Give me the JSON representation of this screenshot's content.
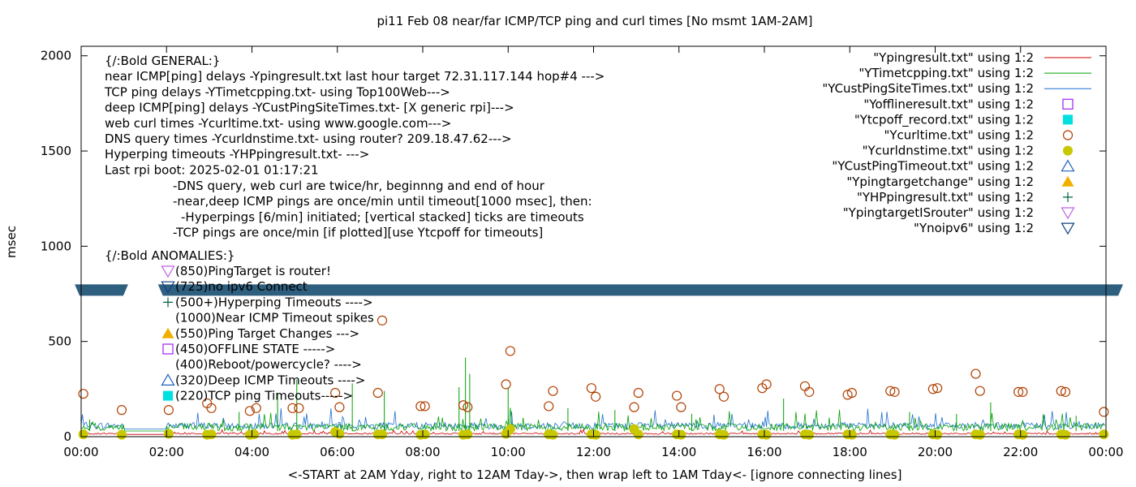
{
  "chart_data": {
    "type": "line",
    "title": "pi11 Feb 08  near/far ICMP/TCP ping and curl times [No msmt 1AM-2AM]",
    "xlabel": "<-START at 2AM Yday, right to 12AM Tday->, then wrap left to 1AM Tday<- [ignore connecting lines]",
    "ylabel": "msec",
    "xlim_hours": [
      0,
      24
    ],
    "ylim": [
      0,
      2050
    ],
    "grid": false,
    "legend_placement": "top-right",
    "x_ticks": [
      "00:00",
      "02:00",
      "04:00",
      "06:00",
      "08:00",
      "10:00",
      "12:00",
      "14:00",
      "16:00",
      "18:00",
      "20:00",
      "22:00",
      "00:00"
    ],
    "y_ticks": [
      "0",
      "500",
      "1000",
      "1500",
      "2000"
    ],
    "y_tick_values": [
      0,
      500,
      1000,
      1500,
      2000
    ],
    "legend": [
      {
        "label": "\"Ypingresult.txt\" using 1:2",
        "kind": "line",
        "color": "#cc0000"
      },
      {
        "label": "\"YTimetcpping.txt\" using 1:2",
        "kind": "line",
        "color": "#00a000"
      },
      {
        "label": "\"YCustPingSiteTimes.txt\" using 1:2",
        "kind": "line",
        "color": "#1f6fd0"
      },
      {
        "label": "\"Yofflineresult.txt\" using 1:2",
        "kind": "open-square",
        "color": "#a020f0"
      },
      {
        "label": "\"Ytcpoff_record.txt\" using 1:2",
        "kind": "filled-square",
        "color": "#00e0e0"
      },
      {
        "label": "\"Ycurltime.txt\" using 1:2",
        "kind": "open-circle",
        "color": "#b04000"
      },
      {
        "label": "\"Ycurldnstime.txt\" using 1:2",
        "kind": "filled-circle",
        "color": "#c8c800"
      },
      {
        "label": "\"YCustPingTimeout.txt\" using 1:2",
        "kind": "open-triangle-up",
        "color": "#2060c0"
      },
      {
        "label": "\"Ypingtargetchange\" using 1:2",
        "kind": "filled-triangle-up",
        "color": "#f0b000"
      },
      {
        "label": "\"YHPpingresult.txt\" using 1:2",
        "kind": "plus",
        "color": "#006040"
      },
      {
        "label": "\"YpingtargetISrouter\" using 1:2",
        "kind": "open-triangle-down",
        "color": "#c060e0"
      },
      {
        "label": "\"Ynoipv6\" using 1:2",
        "kind": "open-triangle-down",
        "color": "#104080"
      }
    ],
    "info_lines": [
      "{/:Bold GENERAL:}",
      "near ICMP[ping] delays -Ypingresult.txt last hour target 72.31.117.144 hop#4 --->",
      "TCP ping delays -YTimetcpping.txt- using Top100Web--->",
      "deep ICMP[ping] delays -YCustPingSiteTimes.txt- [X generic rpi]--->",
      "web curl times -Ycurltime.txt- using www.google.com--->",
      "DNS query times -Ycurldnstime.txt- using router? 209.18.47.62--->",
      "Hyperping timeouts -YHPpingresult.txt- --->",
      "Last rpi boot: 2025-02-01 01:17:21"
    ],
    "notes": [
      "-DNS query, web curl are twice/hr, beginnng and end of hour",
      "-near,deep ICMP pings are once/min until timeout[1000 msec], then:",
      "-Hyperpings [6/min] initiated; [vertical stacked] ticks are timeouts",
      "-TCP pings are once/min [if plotted][use Ytcpoff for timeouts]"
    ],
    "anomalies_title": "{/:Bold ANOMALIES:}",
    "anomalies": [
      {
        "text": "(850)PingTarget is router!",
        "kind": "open-triangle-down",
        "color": "#c060e0"
      },
      {
        "text": "(725)no ipv6 Connect",
        "kind": "open-triangle-down",
        "color": "#104080"
      },
      {
        "text": "(500+)Hyperping Timeouts ---->",
        "kind": "plus",
        "color": "#006040"
      },
      {
        "text": "(1000)Near ICMP Timeout spikes",
        "kind": "none",
        "color": ""
      },
      {
        "text": "(550)Ping Target Changes --->",
        "kind": "filled-triangle-up",
        "color": "#f0b000"
      },
      {
        "text": "(450)OFFLINE STATE ----->",
        "kind": "open-square",
        "color": "#a020f0"
      },
      {
        "text": "(400)Reboot/powercycle? ---->",
        "kind": "none",
        "color": ""
      },
      {
        "text": "(320)Deep ICMP Timeouts ---->",
        "kind": "open-triangle-up",
        "color": "#2060c0"
      },
      {
        "text": "(220)TCP ping Timeouts----->",
        "kind": "filled-square",
        "color": "#00e0e0"
      }
    ],
    "noipv6_band": {
      "y_msec": 770,
      "color": "#2f5f7f"
    },
    "curl_points": [
      [
        0.05,
        225
      ],
      [
        0.95,
        140
      ],
      [
        2.05,
        140
      ],
      [
        2.95,
        175
      ],
      [
        3.05,
        150
      ],
      [
        3.95,
        135
      ],
      [
        4.1,
        150
      ],
      [
        4.95,
        150
      ],
      [
        5.1,
        150
      ],
      [
        5.95,
        230
      ],
      [
        6.05,
        155
      ],
      [
        6.95,
        230
      ],
      [
        7.05,
        610
      ],
      [
        7.95,
        160
      ],
      [
        8.05,
        160
      ],
      [
        8.95,
        165
      ],
      [
        9.05,
        155
      ],
      [
        9.95,
        275
      ],
      [
        10.05,
        450
      ],
      [
        10.95,
        160
      ],
      [
        11.05,
        240
      ],
      [
        11.95,
        255
      ],
      [
        12.05,
        210
      ],
      [
        12.95,
        155
      ],
      [
        13.05,
        230
      ],
      [
        13.95,
        215
      ],
      [
        14.05,
        155
      ],
      [
        14.95,
        250
      ],
      [
        15.05,
        210
      ],
      [
        15.95,
        255
      ],
      [
        16.05,
        275
      ],
      [
        16.95,
        265
      ],
      [
        17.05,
        235
      ],
      [
        17.95,
        220
      ],
      [
        18.05,
        230
      ],
      [
        18.95,
        240
      ],
      [
        19.05,
        235
      ],
      [
        19.95,
        250
      ],
      [
        20.05,
        255
      ],
      [
        20.95,
        330
      ],
      [
        21.05,
        240
      ],
      [
        21.95,
        235
      ],
      [
        22.05,
        235
      ],
      [
        22.95,
        240
      ],
      [
        23.05,
        235
      ],
      [
        23.95,
        130
      ]
    ],
    "dns_points": [
      [
        0.05,
        12
      ],
      [
        0.95,
        10
      ],
      [
        2.05,
        15
      ],
      [
        2.95,
        10
      ],
      [
        3.05,
        12
      ],
      [
        3.95,
        10
      ],
      [
        4.05,
        12
      ],
      [
        4.95,
        10
      ],
      [
        5.05,
        12
      ],
      [
        5.95,
        25
      ],
      [
        6.05,
        15
      ],
      [
        6.95,
        12
      ],
      [
        7.05,
        12
      ],
      [
        7.95,
        10
      ],
      [
        8.05,
        12
      ],
      [
        8.95,
        10
      ],
      [
        9.05,
        12
      ],
      [
        9.95,
        15
      ],
      [
        10.05,
        40
      ],
      [
        10.95,
        12
      ],
      [
        11.05,
        10
      ],
      [
        11.95,
        12
      ],
      [
        12.05,
        10
      ],
      [
        12.95,
        40
      ],
      [
        13.05,
        12
      ],
      [
        13.95,
        12
      ],
      [
        14.05,
        10
      ],
      [
        14.95,
        12
      ],
      [
        15.05,
        10
      ],
      [
        15.95,
        12
      ],
      [
        16.05,
        10
      ],
      [
        16.95,
        12
      ],
      [
        17.05,
        10
      ],
      [
        17.95,
        12
      ],
      [
        18.05,
        10
      ],
      [
        18.95,
        12
      ],
      [
        19.05,
        10
      ],
      [
        19.95,
        12
      ],
      [
        20.05,
        10
      ],
      [
        20.95,
        12
      ],
      [
        21.05,
        10
      ],
      [
        21.95,
        12
      ],
      [
        22.05,
        10
      ],
      [
        22.95,
        12
      ],
      [
        23.05,
        10
      ],
      [
        23.95,
        12
      ]
    ],
    "tcp_spikes": [
      [
        9.0,
        415
      ],
      [
        9.1,
        330
      ],
      [
        5.05,
        300
      ],
      [
        6.35,
        280
      ],
      [
        7.1,
        240
      ],
      [
        8.85,
        260
      ],
      [
        10.0,
        260
      ],
      [
        4.6,
        230
      ],
      [
        16.45,
        200
      ],
      [
        21.3,
        180
      ],
      [
        11.4,
        150
      ],
      [
        12.5,
        140
      ],
      [
        19.4,
        130
      ],
      [
        3.7,
        130
      ],
      [
        20.5,
        120
      ],
      [
        14.3,
        120
      ],
      [
        0.2,
        90
      ],
      [
        23.3,
        110
      ]
    ],
    "near_ping_baseline_msec": 12,
    "tcp_baseline_msec": 30,
    "deep_baseline_msec": 40
  }
}
